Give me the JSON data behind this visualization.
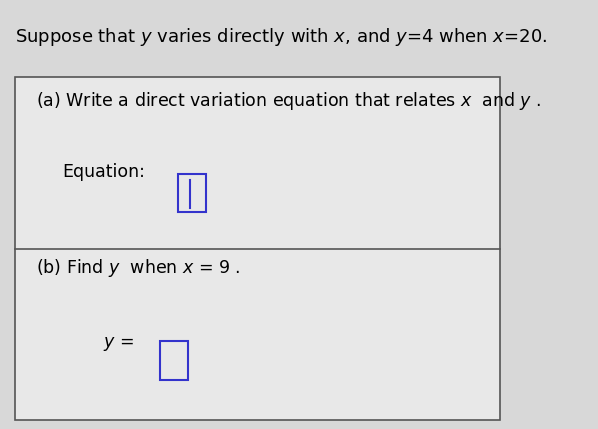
{
  "bg_color": "#d8d8d8",
  "box_bg_color": "#e8e8e8",
  "title_text": "Suppose that $y$ varies directly with $x$, and $y$=4 when $x$=20.",
  "part_a_label": "(a) Write a direct variation equation that relates $x$  and $y$ .",
  "equation_label": "Equation:",
  "part_b_label": "(b) Find $y$  when $x$ = 9 .",
  "y_equals": "$y$ =",
  "input_box_color": "#3333cc",
  "box_border_color": "#555555",
  "title_fontsize": 13,
  "label_fontsize": 12.5,
  "small_fontsize": 12
}
